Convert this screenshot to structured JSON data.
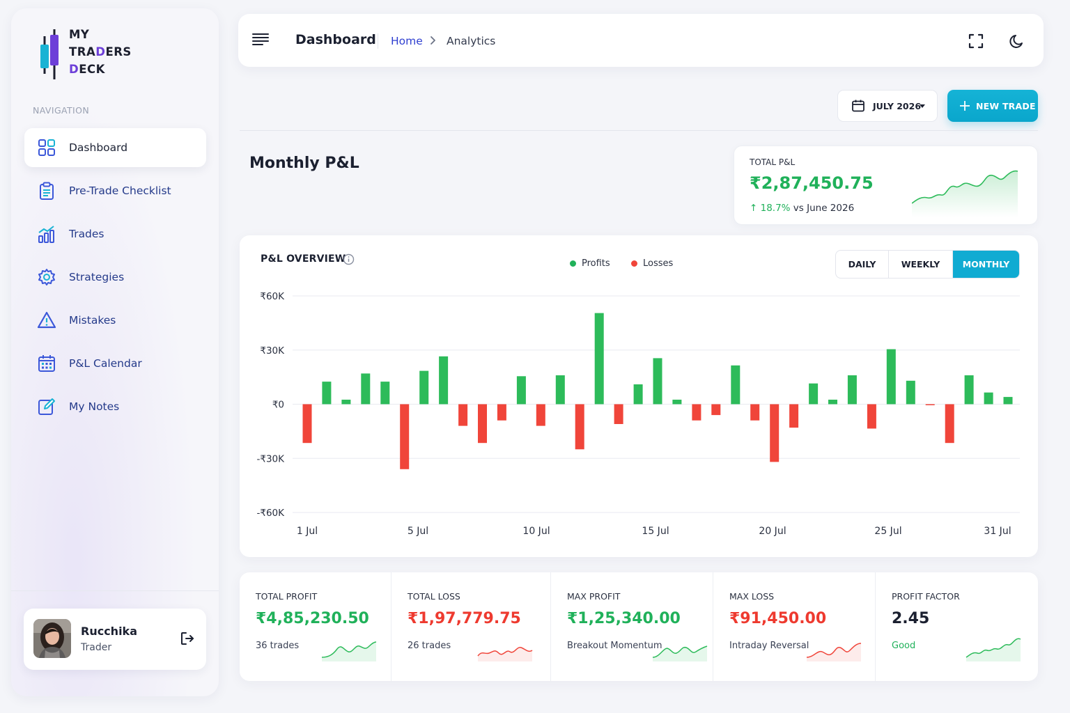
{
  "brand": {
    "line1": "MY",
    "line2_a": "TRA",
    "line2_b": "D",
    "line2_c": "ERS",
    "line3_a": "D",
    "line3_b": "ECK"
  },
  "sidebar": {
    "section_label": "NAVIGATION",
    "items": [
      {
        "label": "Dashboard",
        "icon": "grid-icon",
        "active": true
      },
      {
        "label": "Pre-Trade Checklist",
        "icon": "clipboard-icon"
      },
      {
        "label": "Trades",
        "icon": "bar-chart-icon"
      },
      {
        "label": "Strategies",
        "icon": "gear-icon"
      },
      {
        "label": "Mistakes",
        "icon": "warning-icon"
      },
      {
        "label": "P&L Calendar",
        "icon": "calendar-icon"
      },
      {
        "label": "My Notes",
        "icon": "edit-icon"
      }
    ],
    "user": {
      "name": "Rucchika",
      "role": "Trader"
    }
  },
  "topbar": {
    "title": "Dashboard",
    "breadcrumb_home": "Home",
    "breadcrumb_current": "Analytics"
  },
  "actions": {
    "month_label": "JULY 2026",
    "new_trade_label": "NEW TRADE"
  },
  "page_title": "Monthly P&L",
  "total_pnl": {
    "label": "TOTAL P&L",
    "value": "₹2,87,450.75",
    "delta_pct": "18.7%",
    "delta_text": " vs June 2026"
  },
  "overview": {
    "title": "P&L OVERVIEW",
    "legend_profits": "Profits",
    "legend_losses": "Losses",
    "periods": [
      "DAILY",
      "WEEKLY",
      "MONTHLY"
    ],
    "active_period": "MONTHLY"
  },
  "chart_data": {
    "type": "bar",
    "title": "P&L OVERVIEW",
    "y_tick_labels": [
      "₹60K",
      "₹30K",
      "₹0",
      "-₹30K",
      "-₹60K"
    ],
    "x_tick_labels": [
      "1 Jul",
      "5 Jul",
      "10 Jul",
      "15 Jul",
      "20 Jul",
      "25 Jul",
      "31 Jul"
    ],
    "ylim": [
      -60000,
      60000
    ],
    "series": [
      {
        "name": "Profits",
        "color": "#2dbb5a"
      },
      {
        "name": "Losses",
        "color": "#f0453a"
      }
    ],
    "bars": [
      {
        "day": 1,
        "value": -21500
      },
      {
        "day": 2,
        "value": 12500
      },
      {
        "day": 3,
        "value": 2500
      },
      {
        "day": 4,
        "value": 17000
      },
      {
        "day": 5,
        "value": 12500
      },
      {
        "day": 6,
        "value": -36000
      },
      {
        "day": 7,
        "value": 18500
      },
      {
        "day": 8,
        "value": 26500
      },
      {
        "day": 9,
        "value": -12000
      },
      {
        "day": 10,
        "value": -21500
      },
      {
        "day": 11,
        "value": -9000
      },
      {
        "day": 12,
        "value": 15500
      },
      {
        "day": 13,
        "value": -12000
      },
      {
        "day": 14,
        "value": 16000
      },
      {
        "day": 15,
        "value": -25000
      },
      {
        "day": 16,
        "value": 50500
      },
      {
        "day": 17,
        "value": -11000
      },
      {
        "day": 18,
        "value": 11000
      },
      {
        "day": 19,
        "value": 25500
      },
      {
        "day": 20,
        "value": 2500
      },
      {
        "day": 21,
        "value": -9000
      },
      {
        "day": 22,
        "value": -6000
      },
      {
        "day": 23,
        "value": 21500
      },
      {
        "day": 24,
        "value": -9000
      },
      {
        "day": 25,
        "value": -32000
      },
      {
        "day": 26,
        "value": -13000
      },
      {
        "day": 27,
        "value": 11500
      },
      {
        "day": 28,
        "value": 2500
      },
      {
        "day": 29,
        "value": 16000
      },
      {
        "day": 30,
        "value": -13500
      },
      {
        "day": 31,
        "value": 30500
      },
      {
        "day": 32,
        "value": 13000
      },
      {
        "day": 33,
        "value": -500
      },
      {
        "day": 34,
        "value": -21500
      },
      {
        "day": 35,
        "value": 16000
      },
      {
        "day": 36,
        "value": 6500
      },
      {
        "day": 37,
        "value": 4000
      }
    ]
  },
  "stats": [
    {
      "label": "TOTAL PROFIT",
      "value": "₹4,85,230.50",
      "sub": "36 trades",
      "tone": "green"
    },
    {
      "label": "TOTAL LOSS",
      "value": "₹1,97,779.75",
      "sub": "26 trades",
      "tone": "red"
    },
    {
      "label": "MAX PROFIT",
      "value": "₹1,25,340.00",
      "sub": "Breakout Momentum",
      "tone": "green"
    },
    {
      "label": "MAX LOSS",
      "value": "₹91,450.00",
      "sub": "Intraday Reversal",
      "tone": "red"
    },
    {
      "label": "PROFIT FACTOR",
      "value": "2.45",
      "sub": "Good",
      "tone": "dark"
    }
  ],
  "colors": {
    "accent": "#10abd2",
    "profit": "#2dbb5a",
    "loss": "#f0453a",
    "nav_text": "#243a8a",
    "brand_purple": "#6d3fd8"
  }
}
